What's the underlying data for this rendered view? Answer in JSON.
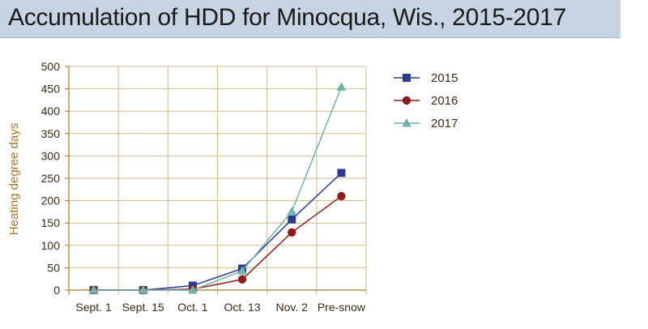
{
  "chart_data": {
    "type": "line",
    "title": "Accumulation of HDD for Minocqua, Wis., 2015-2017",
    "xlabel": "",
    "ylabel": "Heating degree days",
    "categories": [
      "Sept. 1",
      "Sept. 15",
      "Oct. 1",
      "Oct. 13",
      "Nov. 2",
      "Pre-snow"
    ],
    "ylim": [
      0,
      500
    ],
    "yticks": [
      0,
      50,
      100,
      150,
      200,
      250,
      300,
      350,
      400,
      450,
      500
    ],
    "grid": true,
    "legend_position": "right",
    "series": [
      {
        "name": "2015",
        "values": [
          0,
          0,
          10,
          48,
          158,
          262
        ],
        "color": "#2b3a8f",
        "marker": "square"
      },
      {
        "name": "2016",
        "values": [
          0,
          0,
          2,
          24,
          129,
          210
        ],
        "color": "#8c1d1d",
        "marker": "circle"
      },
      {
        "name": "2017",
        "values": [
          0,
          0,
          0,
          43,
          176,
          454
        ],
        "color": "#6fb3ad",
        "marker": "triangle"
      }
    ],
    "colors": {
      "grid": "#d2b98a",
      "axis": "#a6762a"
    }
  }
}
